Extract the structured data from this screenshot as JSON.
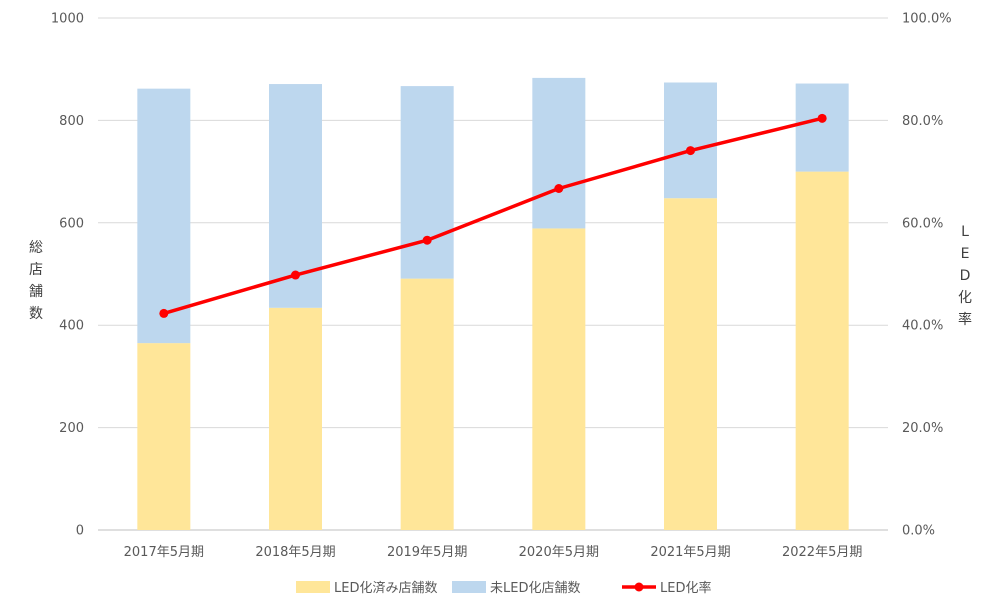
{
  "chart_data": {
    "type": "bar",
    "subtype": "stacked-bar-with-line",
    "title": "",
    "categories": [
      "2017年5月期",
      "2018年5月期",
      "2019年5月期",
      "2020年5月期",
      "2021年5月期",
      "2022年5月期"
    ],
    "series": [
      {
        "name": "LED化済み店舗数",
        "type": "bar",
        "axis": "left",
        "color": "#FFE699",
        "values": [
          365,
          434,
          491,
          589,
          648,
          700
        ]
      },
      {
        "name": "未LED化店舗数",
        "type": "bar",
        "axis": "left",
        "color": "#BDD7EE",
        "values": [
          497,
          437,
          376,
          294,
          226,
          172
        ]
      },
      {
        "name": "LED化率",
        "type": "line",
        "axis": "right",
        "color": "#FF0000",
        "values": [
          42.3,
          49.8,
          56.6,
          66.7,
          74.1,
          80.4
        ]
      }
    ],
    "ylabel_left": "総店舗数",
    "ylabel_right": "LED化率",
    "ylim_left": [
      0,
      1000
    ],
    "ylim_right": [
      0,
      100
    ],
    "yticks_left": [
      "0",
      "200",
      "400",
      "600",
      "800",
      "1000"
    ],
    "yticks_right": [
      "0.0%",
      "20.0%",
      "40.0%",
      "60.0%",
      "80.0%",
      "100.0%"
    ],
    "grid": true,
    "legend_position": "bottom"
  }
}
